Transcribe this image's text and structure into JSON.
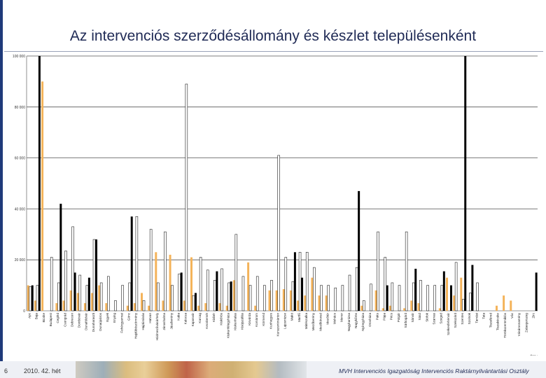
{
  "title": "Az intervenciós szerződésállomány és készlet településenként",
  "footer": {
    "page_number": "6",
    "week_label": "2010. 42. hét",
    "organization": "MVH Intervenciós Igazgatóság Intervenciós Raktárnyilvántartási Osztály"
  },
  "chart_data": {
    "type": "bar",
    "ylim": [
      0,
      100000
    ],
    "yticks": [
      "0",
      "20 000",
      "40 000",
      "60 000",
      "80 000",
      "100 000"
    ],
    "ytick_values": [
      0,
      20000,
      40000,
      60000,
      80000,
      100000
    ],
    "corner_label": "Ösz.:",
    "grid": true,
    "categories": [
      "Apc",
      "Baja",
      "Bicske",
      "Budapest",
      "Cegléd",
      "Csongrád",
      "Debrecen",
      "Dombóvár",
      "Dunaföldvár",
      "Dunaharaszti",
      "Dunaújváros",
      "Egyek",
      "Enying",
      "Fehérgyarmat",
      "Gönc",
      "Hajdúböszörmény",
      "Hajdúnánás",
      "Hatvan",
      "Hódmezővásárhely",
      "Jánoshalma",
      "Jászberény",
      "Kaba",
      "Kalocsa",
      "Kaposvár",
      "Karcag",
      "Kecskemét",
      "Kisbér",
      "Kiskőrös",
      "Kiskunfélegyháza",
      "Kiskunhalas",
      "Kisújszállás",
      "Kisvárda",
      "Komárom",
      "Körmend",
      "Kunhegyes",
      "Kunszentmárton",
      "Lajosmizse",
      "Makó",
      "Martfű",
      "Mátészalka",
      "Mezőberény",
      "Mezőkövesd",
      "Mezőtúr",
      "Mohács",
      "Monor",
      "Nagykanizsa",
      "Nagykőrös",
      "Nyíregyháza",
      "Orosháza",
      "Paks",
      "Pápa",
      "Pécs",
      "Polgár",
      "Sárbogárd",
      "Sárvár",
      "Sásd",
      "Siófok",
      "Szarvas",
      "Szeged",
      "Székesfehérvár",
      "Szekszárd",
      "Szentes",
      "Szolnok",
      "Tamási",
      "Tata",
      "Tiszafüred",
      "Tiszakécske",
      "Törökszentmiklós",
      "Vác",
      "Vásárosnamény",
      "Zalaegerszeg",
      "Zirc"
    ],
    "series": [
      {
        "color": "#f4b35a",
        "values": [
          10000,
          4000,
          90000,
          0,
          3000,
          4000,
          8000,
          7000,
          3000,
          7000,
          10000,
          3000,
          0,
          0,
          2000,
          3000,
          7000,
          2000,
          23000,
          4000,
          22000,
          0,
          4000,
          21000,
          2000,
          3000,
          0,
          3000,
          2000,
          12000,
          0,
          19000,
          2000,
          0,
          8000,
          8000,
          8500,
          8000,
          4000,
          6000,
          13000,
          6000,
          6000,
          0,
          0,
          0,
          0,
          2000,
          0,
          8000,
          1000,
          2000,
          0,
          1000,
          4000,
          3000,
          0,
          0,
          1000,
          13000,
          6000,
          13000,
          0,
          0,
          0,
          0,
          2000,
          6000,
          4000,
          0,
          0,
          0
        ]
      },
      {
        "color": "#ffffff",
        "values": [
          9500,
          10000,
          0,
          21000,
          11000,
          23500,
          33000,
          14000,
          10000,
          28000,
          11000,
          13500,
          4000,
          10000,
          11000,
          37000,
          4000,
          32000,
          11000,
          31000,
          10000,
          14500,
          89000,
          6000,
          21000,
          16000,
          12000,
          16500,
          11000,
          30000,
          13500,
          10000,
          13500,
          10000,
          12000,
          61000,
          21000,
          11500,
          23000,
          23000,
          17000,
          10000,
          10000,
          9000,
          10000,
          14000,
          17000,
          4000,
          10500,
          31000,
          21000,
          11000,
          10000,
          31000,
          11000,
          12000,
          10000,
          10000,
          10000,
          0,
          19000,
          4500,
          7000,
          11000,
          0,
          0,
          0,
          0,
          0,
          0,
          0,
          0
        ]
      },
      {
        "color": "#000000",
        "values": [
          10000,
          100000,
          0,
          0,
          42000,
          0,
          15000,
          0,
          13000,
          28000,
          0,
          0,
          0,
          0,
          37000,
          0,
          0,
          0,
          0,
          0,
          0,
          15000,
          0,
          7000,
          0,
          0,
          15500,
          0,
          11500,
          0,
          0,
          0,
          0,
          0,
          0,
          0,
          0,
          23000,
          13000,
          0,
          0,
          0,
          0,
          0,
          0,
          0,
          47000,
          0,
          0,
          0,
          10000,
          0,
          0,
          0,
          16500,
          0,
          0,
          0,
          15500,
          10000,
          0,
          100000,
          18000,
          0,
          0,
          0,
          0,
          0,
          0,
          0,
          0,
          15000
        ]
      }
    ]
  }
}
